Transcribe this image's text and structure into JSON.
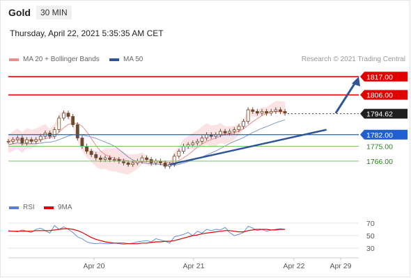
{
  "header": {
    "instrument": "Gold",
    "timeframe": "30 MIN",
    "datetime": "Thursday, April 22, 2021 5:35:35 AM CET"
  },
  "legend": {
    "bollinger": {
      "label": "MA 20 + Bollinger Bands",
      "color": "#f08c8c"
    },
    "ma50": {
      "label": "MA 50",
      "color": "#2f5596"
    },
    "rsi": {
      "label": "RSI",
      "color": "#5b7fd6"
    },
    "ma9": {
      "label": "9MA",
      "color": "#e00000"
    }
  },
  "credit": "Research © 2021 Trading Central",
  "colors": {
    "resistance": "#e00000",
    "pivot": "#1f5fd0",
    "support": "#7bc46b",
    "support_text": "#2e7d1f",
    "last_price": "#222222",
    "trend": "#2f5596"
  },
  "chart_data": [
    {
      "type": "candlestick",
      "x": {
        "ticks": [
          "Apr 20",
          "Apr 21",
          "Apr 22",
          "Apr 29"
        ]
      },
      "ylim": [
        1745,
        1823
      ],
      "series": [
        {
          "name": "Gold",
          "points": [
            [
              0,
              1778
            ],
            [
              3,
              1779
            ],
            [
              6,
              1780
            ],
            [
              9,
              1777
            ],
            [
              12,
              1779
            ],
            [
              15,
              1778
            ],
            [
              18,
              1779
            ],
            [
              21,
              1781
            ],
            [
              24,
              1783
            ],
            [
              27,
              1781
            ],
            [
              30,
              1785
            ],
            [
              33,
              1792
            ],
            [
              36,
              1795
            ],
            [
              39,
              1793
            ],
            [
              42,
              1788
            ],
            [
              45,
              1780
            ],
            [
              48,
              1775
            ],
            [
              51,
              1772
            ],
            [
              54,
              1770
            ],
            [
              57,
              1768
            ],
            [
              60,
              1767
            ],
            [
              63,
              1768
            ],
            [
              66,
              1767
            ],
            [
              69,
              1767
            ],
            [
              72,
              1766
            ],
            [
              75,
              1765
            ],
            [
              78,
              1764
            ],
            [
              81,
              1765
            ],
            [
              84,
              1766
            ],
            [
              87,
              1768
            ],
            [
              90,
              1767
            ],
            [
              93,
              1765
            ],
            [
              96,
              1766
            ],
            [
              99,
              1765
            ],
            [
              102,
              1763
            ],
            [
              105,
              1764
            ],
            [
              108,
              1769
            ],
            [
              111,
              1772
            ],
            [
              114,
              1775
            ],
            [
              117,
              1776
            ],
            [
              120,
              1777
            ],
            [
              123,
              1778
            ],
            [
              126,
              1780
            ],
            [
              129,
              1782
            ],
            [
              132,
              1781
            ],
            [
              135,
              1782
            ],
            [
              138,
              1784
            ],
            [
              141,
              1783
            ],
            [
              144,
              1784
            ],
            [
              147,
              1785
            ],
            [
              150,
              1787
            ],
            [
              153,
              1790
            ],
            [
              156,
              1797
            ],
            [
              159,
              1796
            ],
            [
              162,
              1795
            ],
            [
              165,
              1796
            ],
            [
              168,
              1795
            ],
            [
              171,
              1796
            ],
            [
              174,
              1797
            ],
            [
              177,
              1796
            ],
            [
              180,
              1795
            ]
          ]
        }
      ],
      "levels": [
        {
          "label": "1817.00",
          "value": 1817.0,
          "kind": "resistance"
        },
        {
          "label": "1806.00",
          "value": 1806.0,
          "kind": "resistance"
        },
        {
          "label": "1794.62",
          "value": 1794.62,
          "kind": "last"
        },
        {
          "label": "1782.00",
          "value": 1782.0,
          "kind": "pivot"
        },
        {
          "label": "1775.00",
          "value": 1775.0,
          "kind": "support"
        },
        {
          "label": "1766.00",
          "value": 1766.0,
          "kind": "support"
        }
      ],
      "trendline": {
        "from": [
          105,
          1764
        ],
        "to": [
          207,
          1785
        ]
      },
      "arrow": {
        "from": [
          213,
          1795
        ],
        "to": [
          228,
          1817
        ]
      }
    },
    {
      "type": "line",
      "title": "RSI",
      "ylim": [
        20,
        80
      ],
      "yticks": [
        70,
        50,
        30
      ],
      "series": [
        {
          "name": "RSI",
          "values": [
            58,
            57,
            56,
            59,
            57,
            55,
            60,
            62,
            58,
            54,
            66,
            60,
            64,
            60,
            55,
            48,
            45,
            40,
            38,
            37,
            38,
            37,
            37,
            38,
            37,
            36,
            37,
            38,
            40,
            41,
            42,
            40,
            45,
            43,
            41,
            38,
            48,
            50,
            52,
            55,
            50,
            57,
            54,
            60,
            58,
            60,
            59,
            63,
            55,
            50,
            52,
            55,
            65,
            62,
            58,
            60,
            57,
            59,
            60,
            61,
            60
          ]
        },
        {
          "name": "9MA",
          "values": [
            57,
            57,
            57,
            57,
            57,
            57,
            58,
            58,
            58,
            58,
            59,
            60,
            61,
            61,
            60,
            58,
            55,
            51,
            47,
            44,
            42,
            40,
            39,
            38,
            38,
            38,
            37,
            37,
            37,
            38,
            38,
            39,
            40,
            40,
            41,
            41,
            42,
            44,
            46,
            48,
            50,
            51,
            53,
            54,
            55,
            56,
            57,
            58,
            58,
            57,
            56,
            56,
            58,
            59,
            60,
            60,
            60,
            59,
            59,
            60,
            60
          ]
        }
      ]
    }
  ]
}
